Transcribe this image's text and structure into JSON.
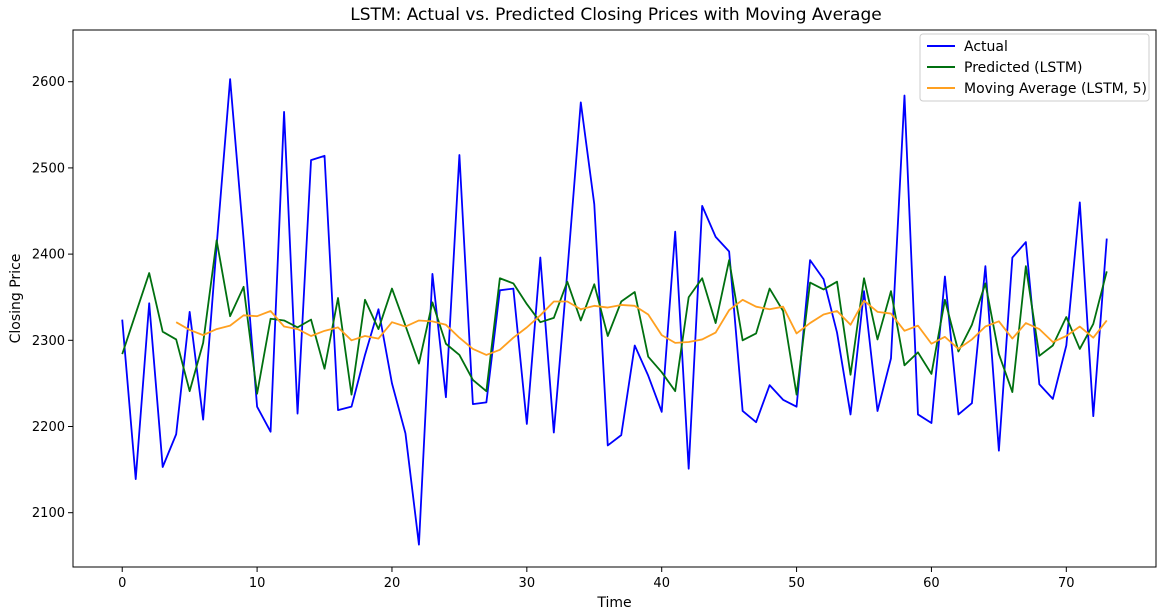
{
  "chart_data": {
    "type": "line",
    "title": "LSTM: Actual vs. Predicted Closing Prices with Moving Average",
    "xlabel": "Time",
    "ylabel": "Closing Price",
    "xlim": [
      -3.65,
      76.65
    ],
    "ylim": [
      2037,
      2660
    ],
    "xticks": [
      0,
      10,
      20,
      30,
      40,
      50,
      60,
      70
    ],
    "yticks": [
      2100,
      2200,
      2300,
      2400,
      2500,
      2600
    ],
    "grid": false,
    "legend_position": "top-right",
    "series": [
      {
        "name": "Actual",
        "color": "#0000ff",
        "x_start": 0,
        "values": [
          2324,
          2139,
          2343,
          2153,
          2191,
          2333,
          2208,
          2410,
          2603,
          2417,
          2223,
          2194,
          2565,
          2215,
          2509,
          2514,
          2219,
          2223,
          2283,
          2336,
          2250,
          2192,
          2063,
          2377,
          2234,
          2515,
          2226,
          2228,
          2358,
          2360,
          2203,
          2396,
          2193,
          2379,
          2576,
          2458,
          2178,
          2190,
          2294,
          2259,
          2217,
          2426,
          2151,
          2456,
          2420,
          2403,
          2218,
          2205,
          2248,
          2231,
          2223,
          2393,
          2371,
          2309,
          2214,
          2357,
          2218,
          2279,
          2584,
          2214,
          2204,
          2374,
          2214,
          2227,
          2386,
          2172,
          2396,
          2414,
          2249,
          2232,
          2294,
          2460,
          2212,
          2418
        ]
      },
      {
        "name": "Predicted (LSTM)",
        "color": "#007010",
        "x_start": 0,
        "values": [
          2284,
          2331,
          2378,
          2310,
          2301,
          2241,
          2297,
          2416,
          2328,
          2362,
          2238,
          2325,
          2323,
          2315,
          2324,
          2267,
          2349,
          2237,
          2347,
          2313,
          2360,
          2317,
          2273,
          2344,
          2296,
          2283,
          2254,
          2241,
          2372,
          2366,
          2342,
          2321,
          2326,
          2368,
          2323,
          2365,
          2305,
          2345,
          2356,
          2281,
          2263,
          2241,
          2350,
          2372,
          2320,
          2393,
          2300,
          2308,
          2360,
          2334,
          2237,
          2367,
          2359,
          2368,
          2260,
          2372,
          2301,
          2357,
          2271,
          2286,
          2261,
          2347,
          2287,
          2318,
          2366,
          2284,
          2240,
          2386,
          2282,
          2294,
          2327,
          2290,
          2319,
          2380
        ]
      },
      {
        "name": "Moving Average (LSTM, 5)",
        "color": "#ffa020",
        "x_start": 4,
        "values": [
          2321,
          2312,
          2306,
          2313,
          2317,
          2329,
          2328,
          2334,
          2316,
          2313,
          2305,
          2311,
          2315,
          2300,
          2305,
          2302,
          2321,
          2316,
          2323,
          2322,
          2318,
          2303,
          2290,
          2283,
          2289,
          2303,
          2315,
          2329,
          2345,
          2345,
          2336,
          2340,
          2338,
          2341,
          2340,
          2330,
          2306,
          2297,
          2298,
          2301,
          2309,
          2335,
          2347,
          2339,
          2336,
          2339,
          2308,
          2320,
          2330,
          2334,
          2318,
          2346,
          2333,
          2331,
          2311,
          2317,
          2296,
          2304,
          2290,
          2301,
          2316,
          2322,
          2302,
          2320,
          2313,
          2298,
          2305,
          2316,
          2303,
          2323
        ]
      }
    ]
  }
}
